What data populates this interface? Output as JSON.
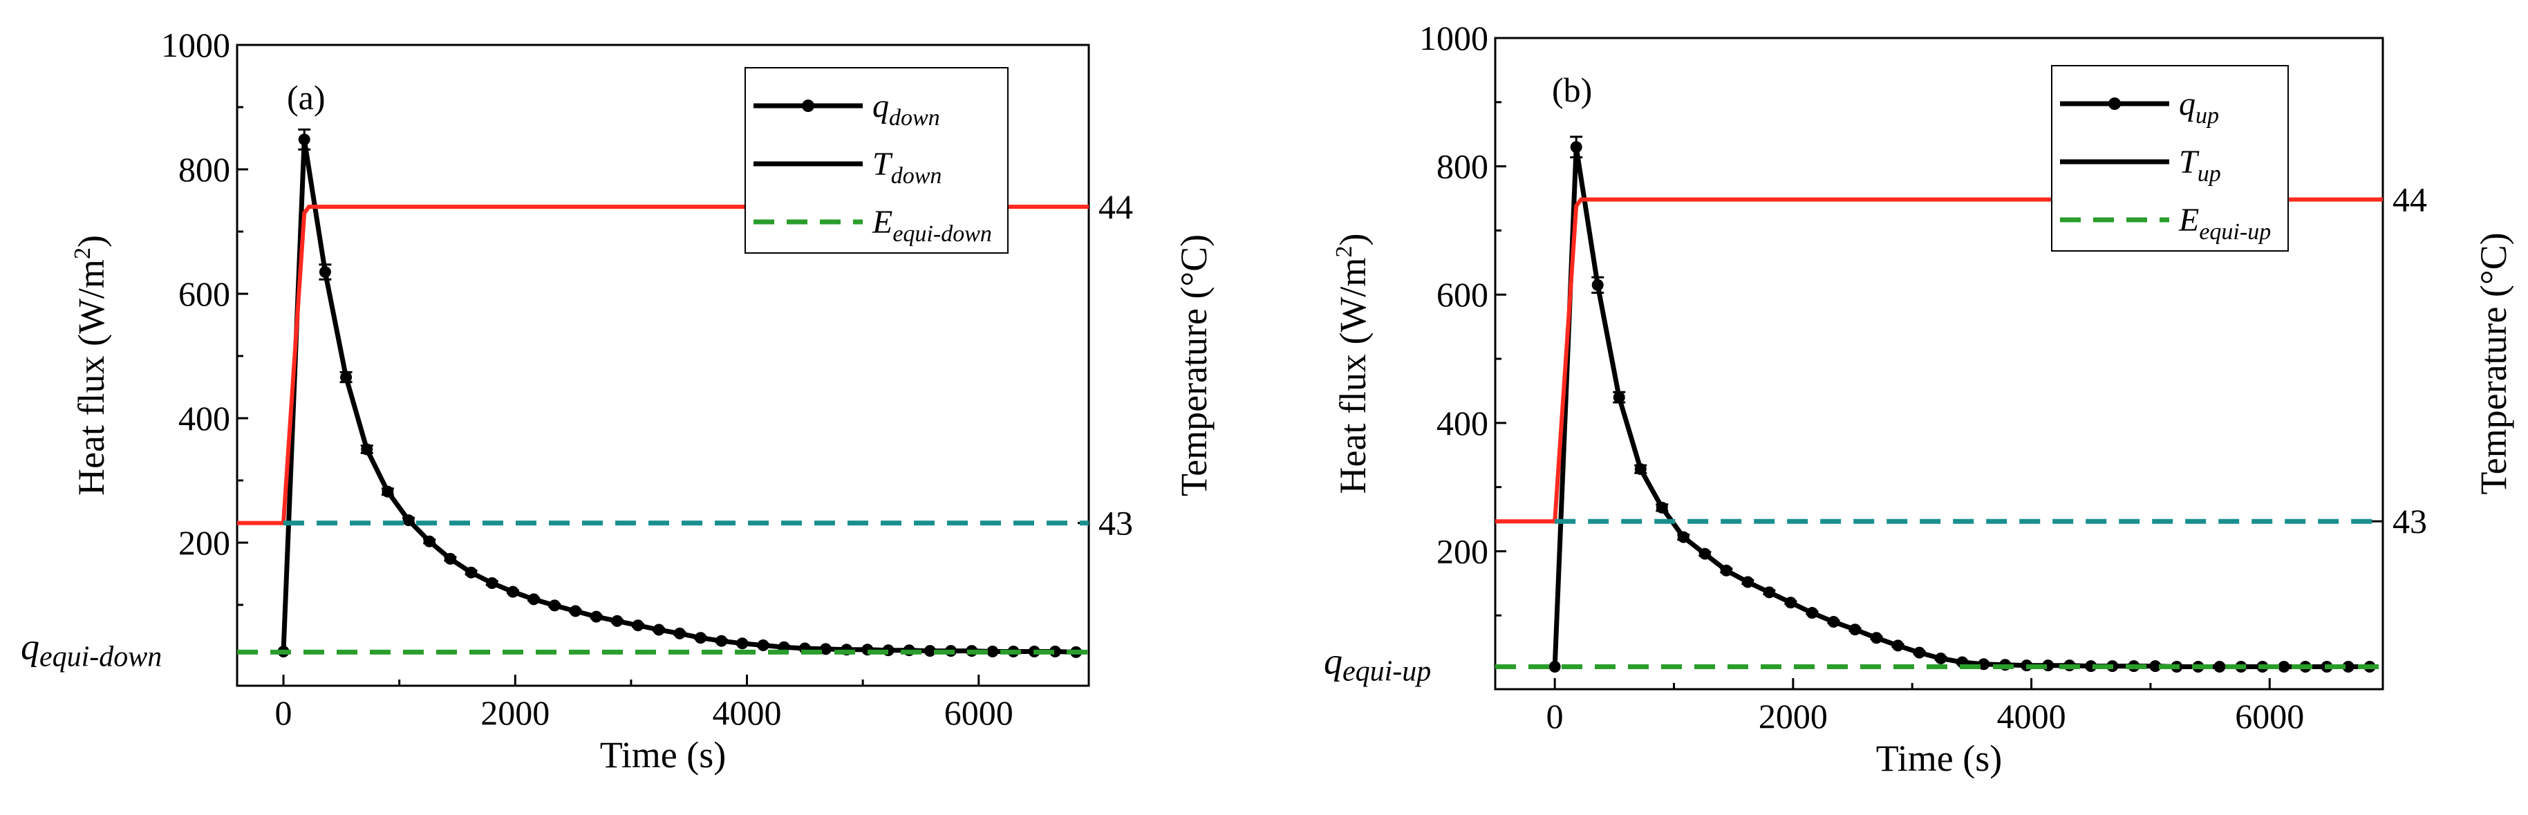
{
  "chart_data": [
    {
      "type": "line",
      "panel_label": "(a)",
      "xlabel": "Time (s)",
      "ylabel": "Heat flux (W/m",
      "ylabel_sup": "2",
      "ylabel_tail": ")",
      "ylabel_right": "Temperature (°C)",
      "xlim": [
        -400,
        6950
      ],
      "ylim": [
        -30,
        1000
      ],
      "y2lim": [
        42.4853,
        44.5118
      ],
      "xticks": [
        0,
        2000,
        4000,
        6000
      ],
      "yticks": [
        200,
        400,
        600,
        800,
        1000
      ],
      "y2ticks": [
        43,
        44
      ],
      "equi_label": "q",
      "equi_label_sub": "equi-down",
      "equi_value": 24,
      "legend": {
        "position": "top-right",
        "entries": [
          {
            "key": "flux",
            "main": "q",
            "sub": "down"
          },
          {
            "key": "temp",
            "main": "T",
            "sub": "down"
          },
          {
            "key": "equi",
            "main": "E",
            "sub": "equi-down"
          }
        ]
      },
      "series": [
        {
          "name": "q_down",
          "axis": "left",
          "color": "#000000",
          "style": "line-markers",
          "x": [
            0,
            180,
            360,
            540,
            720,
            900,
            1080,
            1260,
            1440,
            1620,
            1800,
            1980,
            2160,
            2340,
            2520,
            2700,
            2880,
            3060,
            3240,
            3420,
            3600,
            3780,
            3960,
            4140,
            4320,
            4500,
            4680,
            4860,
            5040,
            5220,
            5400,
            5580,
            5760,
            5940,
            6120,
            6300,
            6480,
            6660,
            6840
          ],
          "y": [
            25,
            848,
            635,
            466,
            350,
            282,
            236,
            202,
            174,
            152,
            135,
            121,
            109,
            99,
            90,
            81,
            74,
            67,
            60,
            54,
            47,
            42,
            38,
            35,
            32,
            30,
            29,
            28,
            28,
            27,
            27,
            26,
            26,
            26,
            25,
            25,
            25,
            25,
            24
          ],
          "errors": [
            0,
            16,
            12,
            8,
            6,
            5,
            4,
            3,
            3,
            3,
            3,
            2,
            2,
            2,
            2,
            2,
            2,
            2,
            2,
            2,
            2,
            2,
            2,
            2,
            2,
            2,
            2,
            2,
            2,
            2,
            2,
            2,
            2,
            2,
            2,
            2,
            2,
            2,
            2
          ]
        },
        {
          "name": "T_down",
          "axis": "right",
          "color": "#ff2a1f",
          "style": "line",
          "x": [
            -400,
            0,
            180,
            220,
            6950
          ],
          "y": [
            43.0,
            43.0,
            43.98,
            44.0,
            44.0
          ]
        },
        {
          "name": "E_equi_down_teal",
          "axis": "right",
          "color": "#1a8f8f",
          "style": "dashed",
          "x": [
            0,
            6950
          ],
          "y": [
            43.0,
            43.0
          ]
        },
        {
          "name": "E_equi_down",
          "axis": "left",
          "color": "#2a9d2a",
          "style": "dashed",
          "x": [
            -400,
            6950
          ],
          "y": [
            24,
            24
          ]
        }
      ]
    },
    {
      "type": "line",
      "panel_label": "(b)",
      "xlabel": "Time (s)",
      "ylabel": "Heat flux  (W/m",
      "ylabel_sup": "2",
      "ylabel_tail": ")",
      "ylabel_right": "Temperature (°C)",
      "xlim": [
        -500,
        6950
      ],
      "ylim": [
        -15,
        1000
      ],
      "y2lim": [
        42.4784,
        44.5017
      ],
      "xticks": [
        0,
        2000,
        4000,
        6000
      ],
      "yticks": [
        200,
        400,
        600,
        800,
        1000
      ],
      "y2ticks": [
        43,
        44
      ],
      "equi_label": "q",
      "equi_label_sub": "equi-up",
      "equi_value": 20,
      "legend": {
        "position": "top-right",
        "entries": [
          {
            "key": "flux",
            "main": "q",
            "sub": "up"
          },
          {
            "key": "temp",
            "main": "T",
            "sub": "up"
          },
          {
            "key": "equi",
            "main": "E",
            "sub": "equi-up"
          }
        ]
      },
      "series": [
        {
          "name": "q_up",
          "axis": "left",
          "color": "#000000",
          "style": "line-markers",
          "x": [
            0,
            180,
            360,
            540,
            720,
            900,
            1080,
            1260,
            1440,
            1620,
            1800,
            1980,
            2160,
            2340,
            2520,
            2700,
            2880,
            3060,
            3240,
            3420,
            3600,
            3780,
            3960,
            4140,
            4320,
            4500,
            4680,
            4860,
            5040,
            5220,
            5400,
            5580,
            5760,
            5940,
            6120,
            6300,
            6480,
            6660,
            6840
          ],
          "y": [
            20,
            830,
            615,
            440,
            328,
            268,
            222,
            196,
            170,
            152,
            136,
            120,
            104,
            90,
            78,
            65,
            53,
            42,
            33,
            27,
            24,
            23,
            22,
            22,
            22,
            21,
            21,
            21,
            21,
            20,
            20,
            20,
            20,
            20,
            20,
            20,
            20,
            20,
            20
          ],
          "errors": [
            0,
            16,
            12,
            8,
            6,
            5,
            4,
            3,
            3,
            3,
            3,
            2,
            2,
            2,
            2,
            2,
            2,
            2,
            2,
            2,
            2,
            2,
            2,
            2,
            2,
            2,
            2,
            2,
            2,
            2,
            2,
            2,
            2,
            2,
            2,
            2,
            2,
            2,
            2
          ]
        },
        {
          "name": "T_up",
          "axis": "right",
          "color": "#ff2a1f",
          "style": "line",
          "x": [
            -500,
            0,
            180,
            220,
            6950
          ],
          "y": [
            43.0,
            43.0,
            43.98,
            44.0,
            44.0
          ]
        },
        {
          "name": "E_equi_up_teal",
          "axis": "right",
          "color": "#1a8f8f",
          "style": "dashed",
          "x": [
            0,
            6950
          ],
          "y": [
            43.0,
            43.0
          ]
        },
        {
          "name": "E_equi_up",
          "axis": "left",
          "color": "#2a9d2a",
          "style": "dashed",
          "x": [
            -500,
            6950
          ],
          "y": [
            20,
            20
          ]
        }
      ]
    }
  ]
}
